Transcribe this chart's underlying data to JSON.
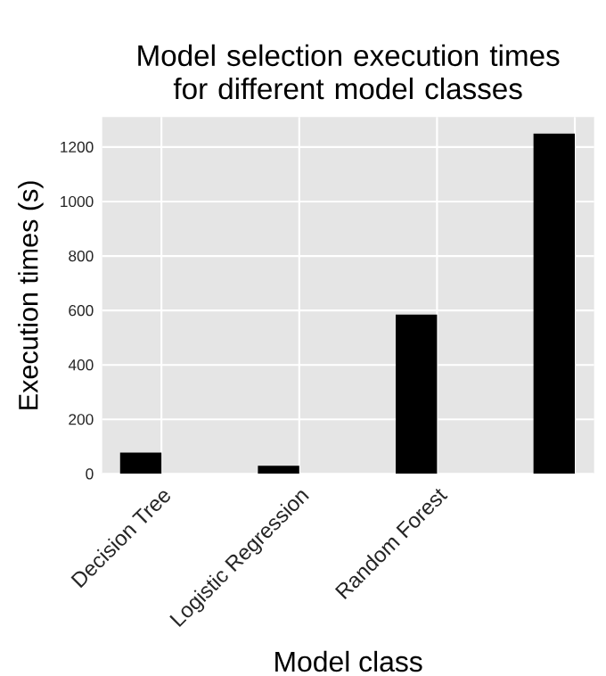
{
  "chart_data": {
    "type": "bar",
    "title": "Model selection execution times\nfor different model classes",
    "xlabel": "Model class",
    "ylabel": "Execution times (s)",
    "categories": [
      "Decision Tree",
      "Logistic Regression",
      "Random Forest",
      null
    ],
    "values": [
      78,
      30,
      585,
      1250
    ],
    "color": "#000000",
    "ylim": [
      0,
      1310
    ],
    "yticks": [
      0,
      200,
      400,
      600,
      800,
      1000,
      1200
    ],
    "grid": true
  }
}
